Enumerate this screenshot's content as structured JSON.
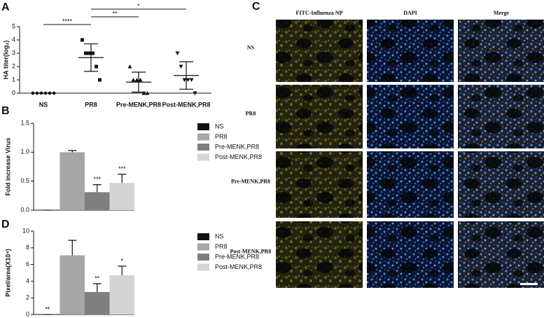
{
  "chart_data": [
    {
      "type": "dot",
      "panel_label": "A",
      "ylabel": "HA titer(log₂)",
      "categories": [
        "NS",
        "PR8",
        "Pre-MENK,PR8",
        "Post-MENK,PR8"
      ],
      "points": [
        [
          0,
          0,
          0,
          0,
          0,
          0
        ],
        [
          4,
          3,
          3,
          3,
          2,
          1
        ],
        [
          2,
          1,
          1,
          1,
          0,
          0
        ],
        [
          3,
          2,
          1,
          1,
          1,
          0
        ]
      ],
      "means": [
        0,
        2.67,
        0.83,
        1.33
      ],
      "sd": [
        0,
        1.03,
        0.75,
        1.03
      ],
      "color": "#111111",
      "ylim": [
        0,
        5
      ],
      "yticks": [
        0,
        1,
        2,
        3,
        4,
        5
      ],
      "comparisons": [
        {
          "label": "****",
          "between": [
            "NS",
            "PR8"
          ]
        },
        {
          "label": "**",
          "between": [
            "PR8",
            "Pre-MENK,PR8"
          ]
        },
        {
          "label": "*",
          "between": [
            "PR8",
            "Post-MENK,PR8"
          ]
        }
      ]
    },
    {
      "type": "bar",
      "panel_label": "B",
      "ylabel": "Fold increase Virus",
      "categories": [
        "NS",
        "PR8",
        "Pre-MENK,PR8",
        "Post-MENK,PR8"
      ],
      "values": [
        0,
        1.0,
        0.31,
        0.47
      ],
      "errors": [
        0,
        0.03,
        0.13,
        0.15
      ],
      "sig_labels": [
        null,
        null,
        "***",
        "***"
      ],
      "colors": [
        "#111111",
        "#a6a6a6",
        "#7f7f7f",
        "#d4d4d4"
      ],
      "ylim": [
        0,
        1.5
      ],
      "yticks": [
        {
          "value": 0,
          "label": "0.0"
        },
        {
          "value": 0.5,
          "label": "0.5"
        },
        {
          "value": 1,
          "label": "1.0"
        },
        {
          "value": 1.5,
          "label": "1.5"
        }
      ]
    },
    {
      "type": "bar",
      "panel_label": "D",
      "ylabel": "Pixel/area(X10⁴)",
      "categories": [
        "NS",
        "PR8",
        "Pre-MENK,PR8",
        "Post-MENK,PR8"
      ],
      "values": [
        0,
        7.1,
        2.7,
        4.7
      ],
      "errors": [
        0,
        1.8,
        1.0,
        1.1
      ],
      "sig_labels": [
        "**",
        null,
        "**",
        "*"
      ],
      "colors": [
        "#111111",
        "#a6a6a6",
        "#7f7f7f",
        "#d4d4d4"
      ],
      "ylim": [
        0,
        10
      ],
      "yticks": [
        0,
        2,
        4,
        6,
        8,
        10
      ]
    }
  ],
  "image_grid": {
    "panel_label": "C",
    "columns": [
      "FITC-Influenza NP",
      "DAPI",
      "Merge"
    ],
    "rows": [
      "NS",
      "PR8",
      "Pre-MENK,PR8",
      "Post-MENK,PR8"
    ]
  }
}
